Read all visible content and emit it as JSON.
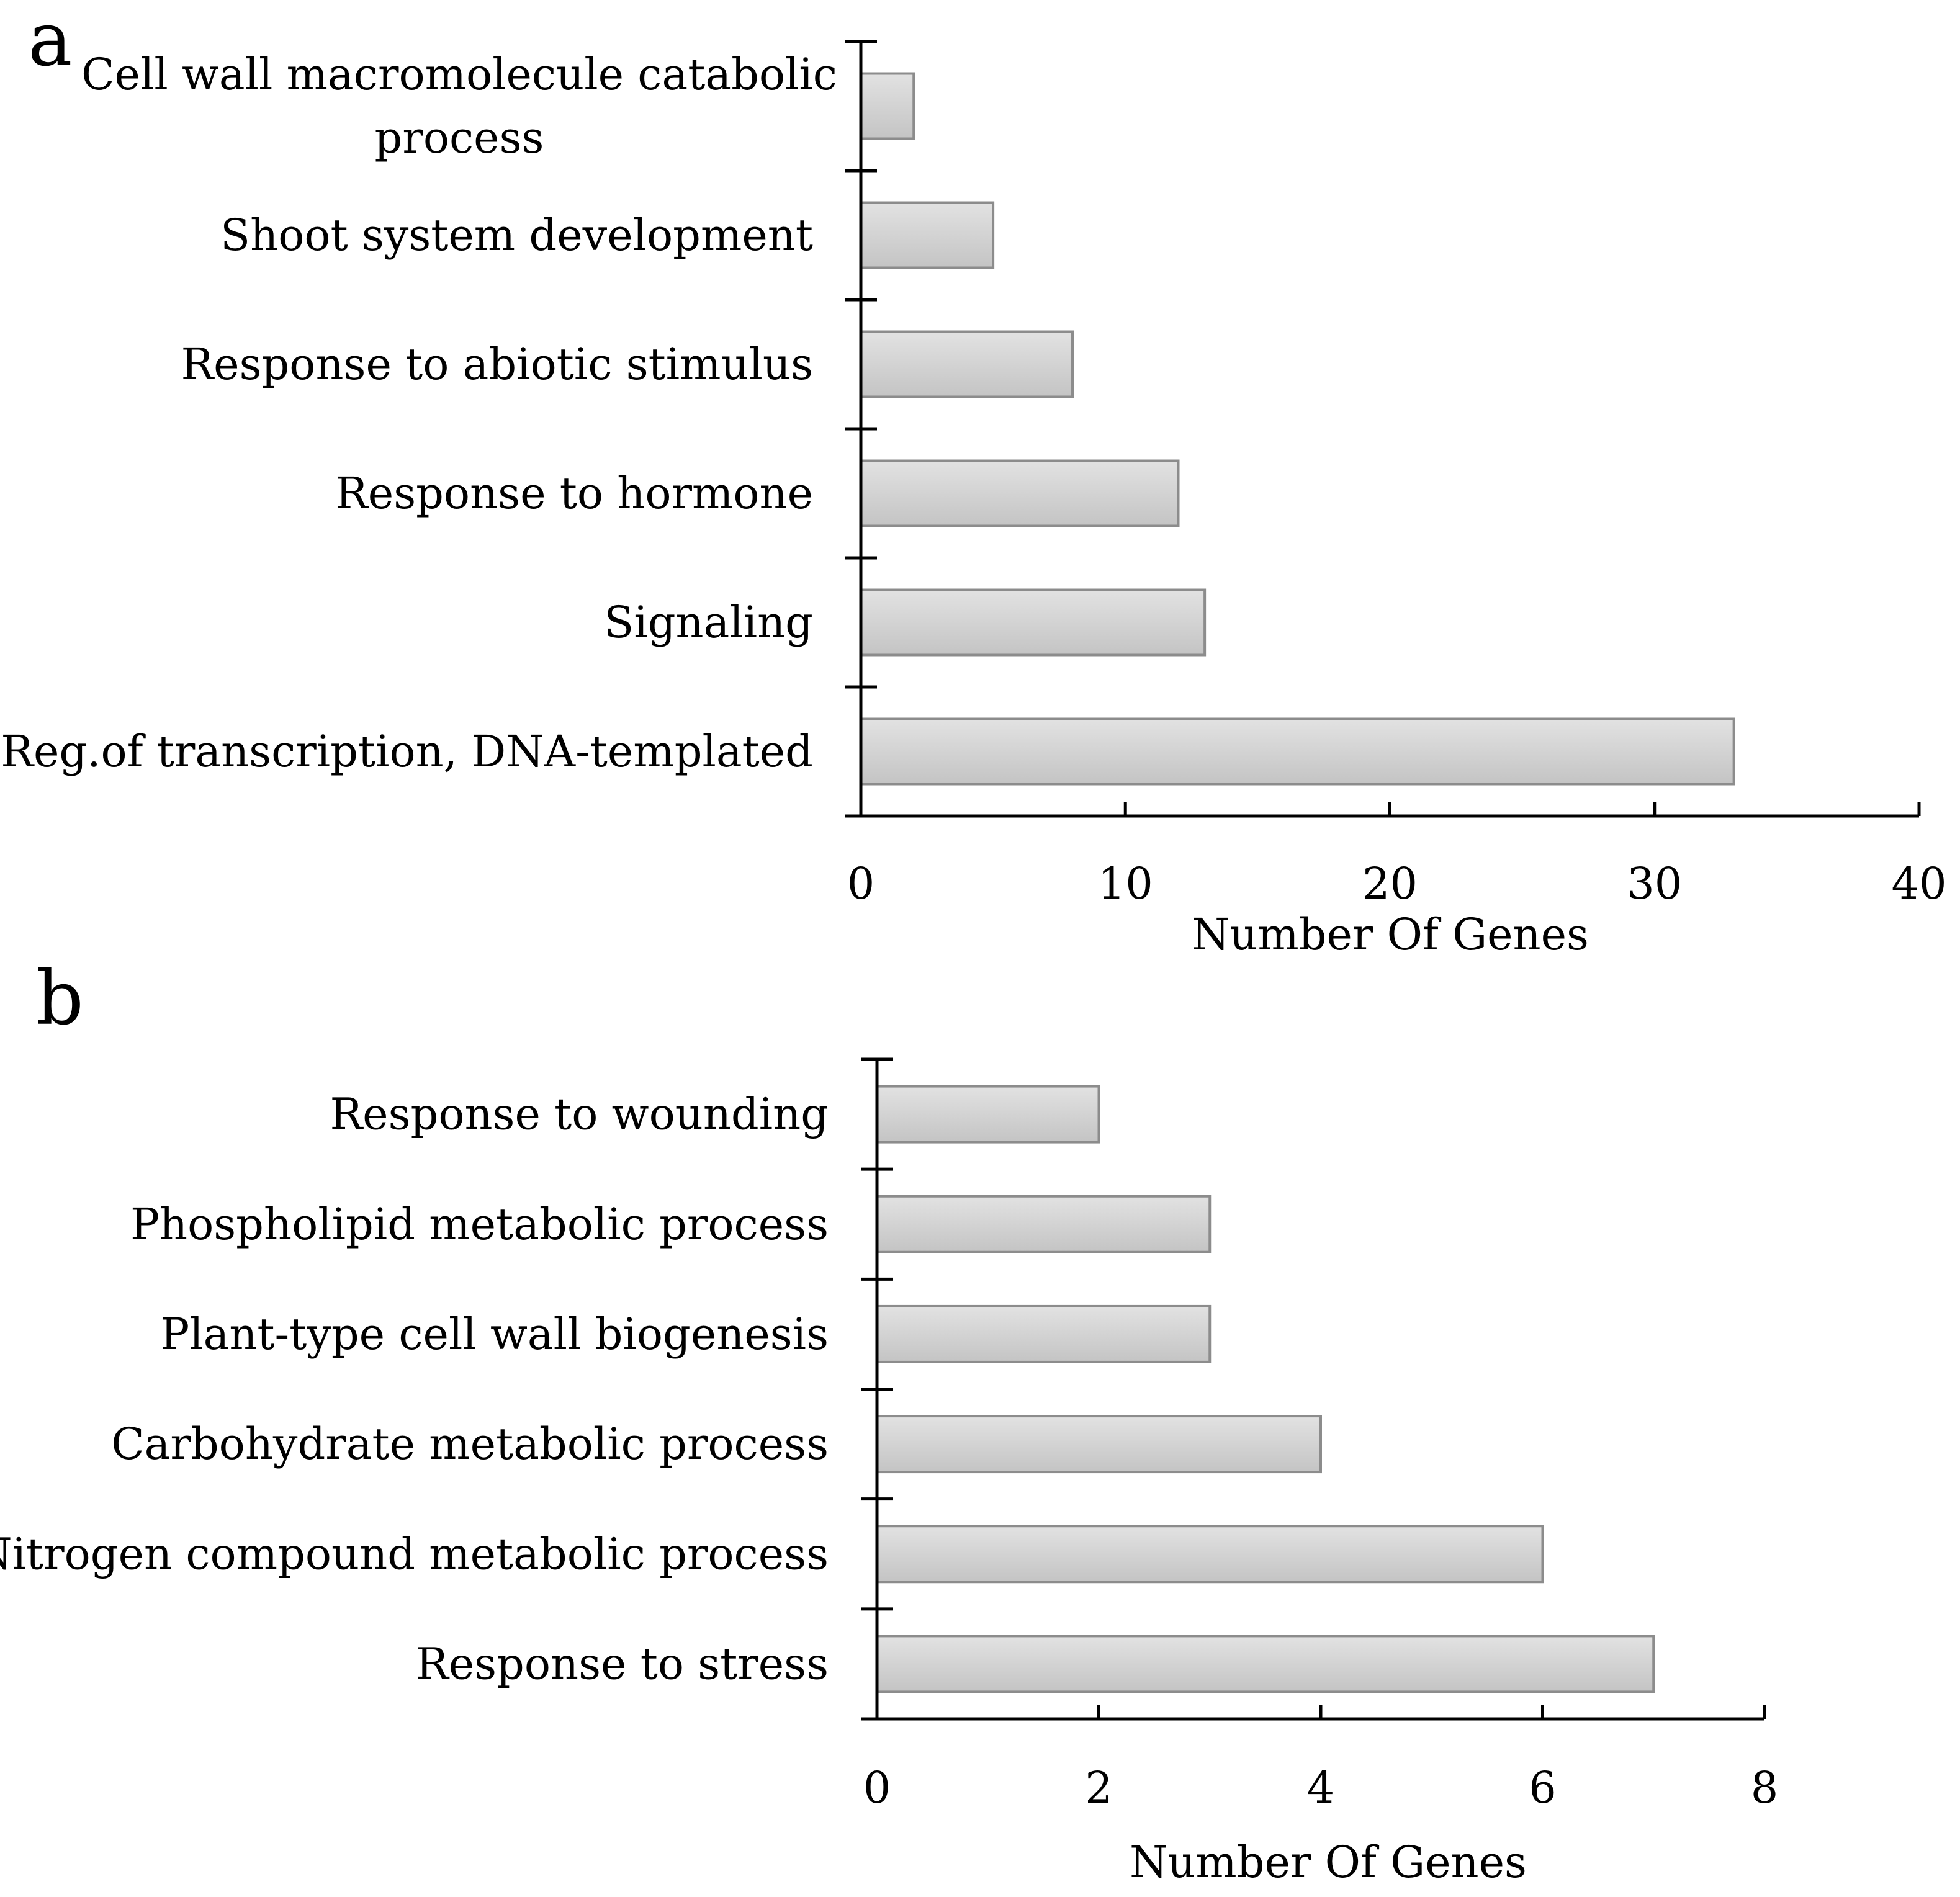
{
  "chart_data": [
    {
      "panel": "a",
      "type": "bar",
      "orientation": "horizontal",
      "categories": [
        [
          "Cell wall macromolecule catabolic",
          "process"
        ],
        [
          "Shoot system development"
        ],
        [
          "Response to abiotic stimulus"
        ],
        [
          "Response to hormone"
        ],
        [
          "Signaling"
        ],
        [
          "Reg.of transcription, DNA-templated"
        ]
      ],
      "values": [
        2,
        5,
        8,
        12,
        13,
        33
      ],
      "xlabel": "Number Of Genes",
      "ylabel": "",
      "xlim": [
        0,
        40
      ],
      "xticks": [
        "0",
        "10",
        "20",
        "30",
        "40"
      ],
      "grid": false,
      "bar_color": "#d2d2d2",
      "bar_edge_color": "#8c8c8c"
    },
    {
      "panel": "b",
      "type": "bar",
      "orientation": "horizontal",
      "categories": [
        [
          "Response to wounding"
        ],
        [
          "Phospholipid metabolic process"
        ],
        [
          "Plant-type cell wall biogenesis"
        ],
        [
          "Carbohydrate metabolic process"
        ],
        [
          "Nitrogen compound metabolic process"
        ],
        [
          "Response to stress"
        ]
      ],
      "values": [
        2,
        3,
        3,
        4,
        6,
        7
      ],
      "xlabel": "Number Of Genes",
      "ylabel": "",
      "xlim": [
        0,
        8
      ],
      "xticks": [
        "0",
        "2",
        "4",
        "6",
        "8"
      ],
      "grid": false,
      "bar_color": "#d2d2d2",
      "bar_edge_color": "#8c8c8c"
    }
  ]
}
